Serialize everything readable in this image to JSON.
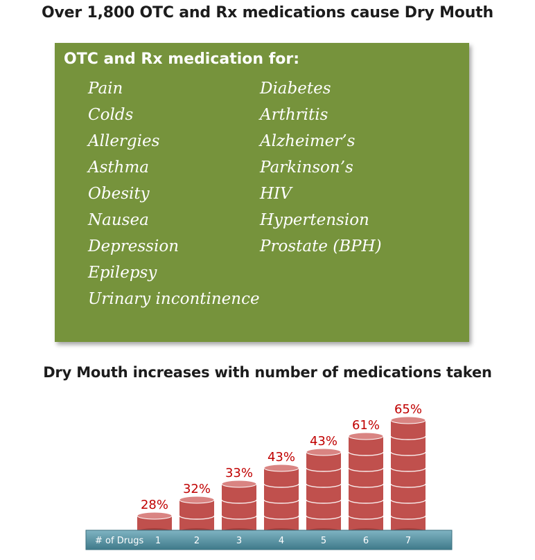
{
  "header": {
    "title": "Over 1,800 OTC and Rx medications cause Dry Mouth"
  },
  "medication_box": {
    "heading": "OTC and Rx medication for:",
    "left_column": [
      "Pain",
      "Colds",
      "Allergies",
      "Asthma",
      "Obesity",
      "Nausea",
      "Depression",
      "Epilepsy",
      "Urinary incontinence"
    ],
    "right_column": [
      "Diabetes",
      "Arthritis",
      "Alzheimer’s",
      "Parkinson’s",
      "HIV",
      "Hypertension",
      "Prostate (BPH)"
    ],
    "background_color": "#76933c"
  },
  "chart_title": "Dry Mouth increases with number of medications taken",
  "chart_data": {
    "type": "bar",
    "title": "Dry Mouth increases with number of medications taken",
    "xlabel": "# of Drugs",
    "categories": [
      "1",
      "2",
      "3",
      "4",
      "5",
      "6",
      "7"
    ],
    "values": [
      28,
      32,
      33,
      43,
      43,
      61,
      65
    ],
    "value_labels": [
      "28%",
      "32%",
      "33%",
      "43%",
      "43%",
      "61%",
      "65%"
    ],
    "unit": "%",
    "stack_units": [
      1,
      2,
      3,
      4,
      5,
      6,
      7
    ],
    "bar_color": "#c0504d",
    "label_color": "#c00000",
    "axis_color": "#4a8595"
  }
}
